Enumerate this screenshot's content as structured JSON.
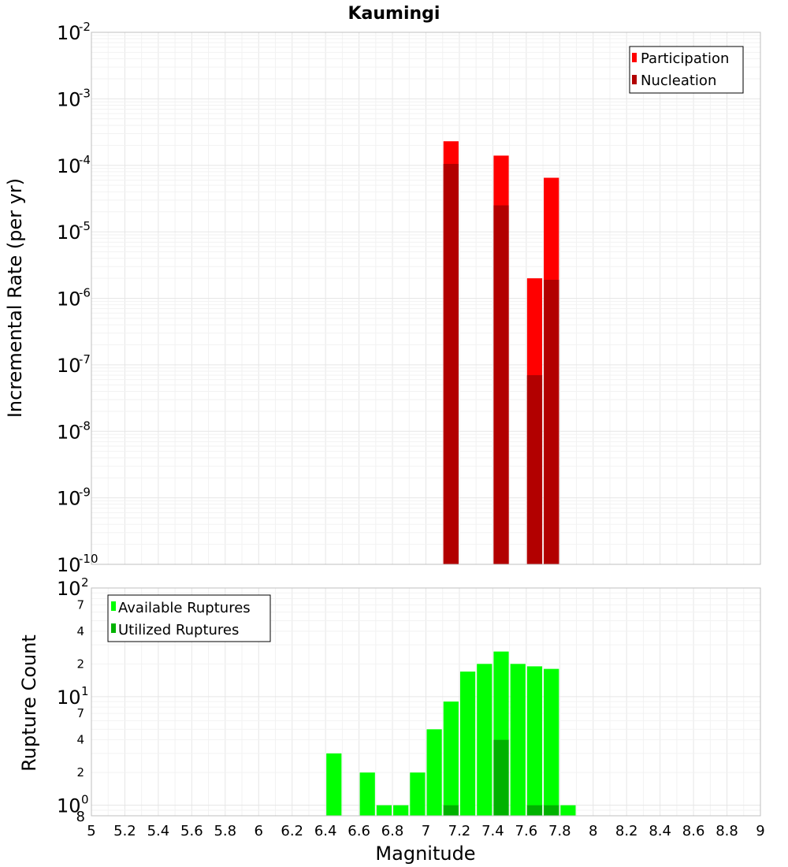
{
  "chart_data": [
    {
      "type": "bar",
      "title": "Kaumingi",
      "xlabel": "",
      "ylabel": "Incremental Rate (per yr)",
      "yscale": "log",
      "ylim": [
        1e-10,
        0.01
      ],
      "xlim": [
        5,
        9
      ],
      "grid": true,
      "legend_position": "top-right",
      "bar_width": 0.1,
      "x": [
        7.15,
        7.45,
        7.65,
        7.75
      ],
      "series": [
        {
          "name": "Participation",
          "color": "#ff0000",
          "values": [
            0.00023,
            0.00014,
            2e-06,
            6.5e-05
          ]
        },
        {
          "name": "Nucleation",
          "color": "#b20000",
          "values": [
            0.000105,
            2.5e-05,
            7e-08,
            1.9e-06
          ]
        }
      ]
    },
    {
      "type": "bar",
      "title": "",
      "xlabel": "Magnitude",
      "ylabel": "Rupture Count",
      "yscale": "log",
      "ylim": [
        0.8,
        100
      ],
      "xlim": [
        5,
        9
      ],
      "grid": true,
      "legend_position": "top-left",
      "bar_width": 0.1,
      "x": [
        6.45,
        6.65,
        6.75,
        6.85,
        6.95,
        7.05,
        7.15,
        7.25,
        7.35,
        7.45,
        7.55,
        7.65,
        7.75,
        7.85
      ],
      "series": [
        {
          "name": "Available Ruptures",
          "color": "#00ff00",
          "values": [
            3,
            2,
            1,
            1,
            2,
            5,
            9,
            17,
            20,
            26,
            20,
            19,
            18,
            1
          ]
        },
        {
          "name": "Utilized Ruptures",
          "color": "#00b200",
          "values": [
            0,
            0,
            0,
            0,
            0,
            0,
            1,
            0,
            0,
            4,
            0,
            1,
            1,
            0
          ]
        }
      ]
    }
  ],
  "axes": {
    "x_ticks": [
      "5",
      "5.2",
      "5.4",
      "5.6",
      "5.8",
      "6",
      "6.2",
      "6.4",
      "6.6",
      "6.8",
      "7",
      "7.2",
      "7.4",
      "7.6",
      "7.8",
      "8",
      "8.2",
      "8.4",
      "8.6",
      "8.8",
      "9"
    ],
    "top_y_ticks": [
      {
        "base": "10",
        "exp": "-10"
      },
      {
        "base": "10",
        "exp": "-9"
      },
      {
        "base": "10",
        "exp": "-8"
      },
      {
        "base": "10",
        "exp": "-7"
      },
      {
        "base": "10",
        "exp": "-6"
      },
      {
        "base": "10",
        "exp": "-5"
      },
      {
        "base": "10",
        "exp": "-4"
      },
      {
        "base": "10",
        "exp": "-3"
      },
      {
        "base": "10",
        "exp": "-2"
      }
    ],
    "bottom_y_major_ticks": [
      {
        "base": "10",
        "exp": "0"
      },
      {
        "base": "10",
        "exp": "1"
      },
      {
        "base": "10",
        "exp": "2"
      }
    ],
    "bottom_y_minor_ticks": [
      "8",
      "2",
      "4",
      "7",
      "2",
      "4",
      "7"
    ]
  }
}
